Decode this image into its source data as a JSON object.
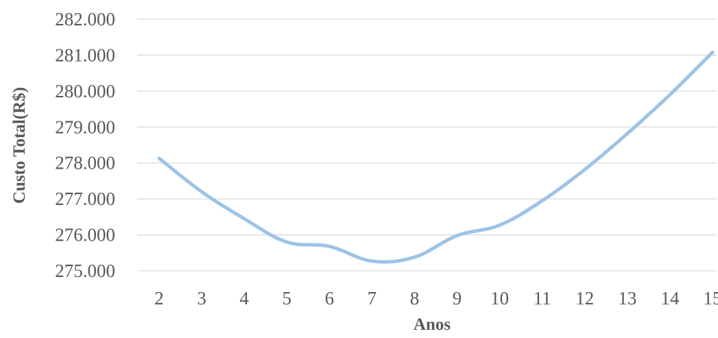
{
  "chart_data": {
    "type": "line",
    "title": "",
    "xlabel": "Anos",
    "ylabel": "Custo Total(R$)",
    "x": [
      2,
      3,
      4,
      5,
      6,
      7,
      8,
      9,
      10,
      11,
      12,
      13,
      14,
      15
    ],
    "categories": [
      "2",
      "3",
      "4",
      "5",
      "6",
      "7",
      "8",
      "9",
      "10",
      "11",
      "12",
      "13",
      "14",
      "15"
    ],
    "series": [
      {
        "values": [
          278130,
          277200,
          276450,
          275800,
          275680,
          275270,
          275380,
          275980,
          276270,
          276950,
          277820,
          278820,
          279900,
          281080
        ]
      }
    ],
    "ylim": [
      275000,
      282000
    ],
    "yticks": [
      275000,
      276000,
      277000,
      278000,
      279000,
      280000,
      281000,
      282000
    ],
    "ytick_labels": [
      "275.000",
      "276.000",
      "277.000",
      "278.000",
      "279.000",
      "280.000",
      "281.000",
      "282.000"
    ],
    "grid": true,
    "legend": "none",
    "colors": {
      "line": "#9DC3E6",
      "grid": "#D9D9D9",
      "text": "#595959"
    }
  }
}
